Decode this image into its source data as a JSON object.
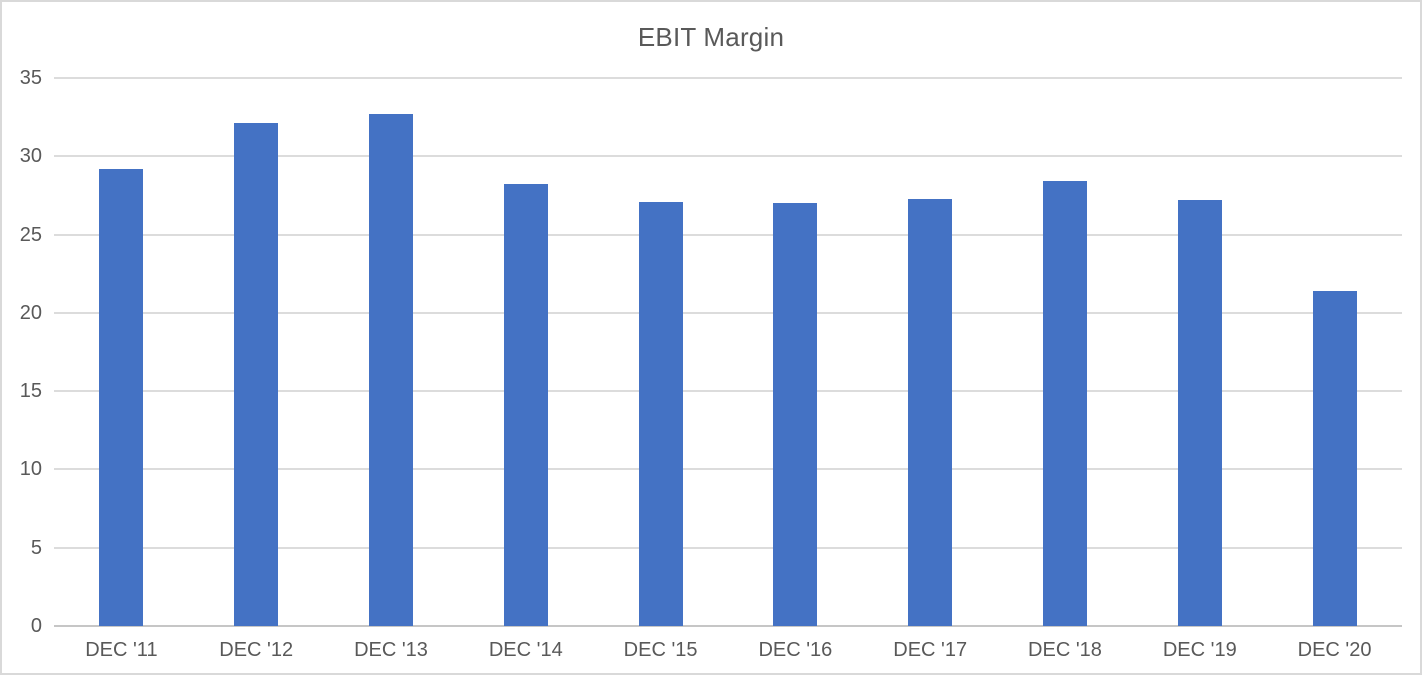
{
  "chart_data": {
    "type": "bar",
    "title": "EBIT Margin",
    "categories": [
      "DEC '11",
      "DEC '12",
      "DEC '13",
      "DEC '14",
      "DEC '15",
      "DEC '16",
      "DEC '17",
      "DEC '18",
      "DEC '19",
      "DEC '20"
    ],
    "values": [
      29.2,
      32.1,
      32.7,
      28.2,
      27.1,
      27.0,
      27.3,
      28.4,
      27.2,
      21.4
    ],
    "xlabel": "",
    "ylabel": "",
    "ylim": [
      0,
      35
    ],
    "yticks": [
      0,
      5,
      10,
      15,
      20,
      25,
      30,
      35
    ],
    "grid": true,
    "legend_position": "none",
    "bar_color": "#4472C4",
    "gridline_color": "#dcdcdc",
    "axis_line_color": "#c6c6c6",
    "text_color": "#595959",
    "background": "#ffffff",
    "border_color": "#d9d9d9"
  }
}
